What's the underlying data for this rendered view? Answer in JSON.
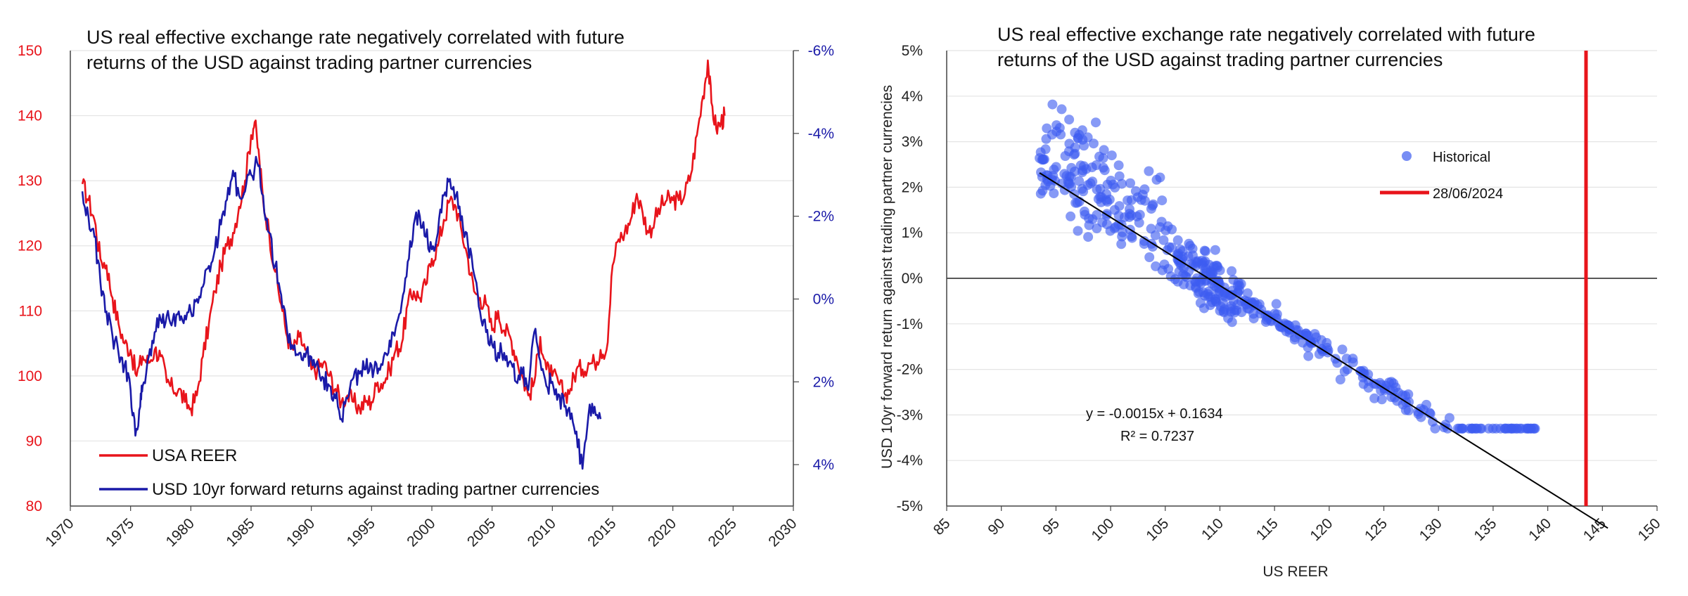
{
  "chart_data": [
    {
      "type": "line",
      "title_line1": "US real effective exchange rate negatively correlated with future",
      "title_line2": "returns of the USD against trading partner currencies",
      "xlim": [
        1970,
        2030
      ],
      "x_ticks": [
        "1970",
        "1975",
        "1980",
        "1985",
        "1990",
        "1995",
        "2000",
        "2005",
        "2010",
        "2015",
        "2020",
        "2025",
        "2030"
      ],
      "y_left_lim": [
        80,
        150
      ],
      "y_left_ticks": [
        "80",
        "90",
        "100",
        "110",
        "120",
        "130",
        "140",
        "150"
      ],
      "y_right_lim": [
        -6,
        5
      ],
      "y_right_inverted": true,
      "y_right_ticks": [
        "-6%",
        "-4%",
        "-2%",
        "0%",
        "2%",
        "4%"
      ],
      "grid": true,
      "legend_position": "bottom-left",
      "colors": {
        "reer": "#e8141b",
        "fwd": "#1a1aa8"
      },
      "series": [
        {
          "name": "USA REER",
          "axis": "left",
          "color": "#e8141b",
          "points": [
            [
              1971.0,
              129.5
            ],
            [
              1971.5,
              127
            ],
            [
              1972.0,
              124
            ],
            [
              1972.5,
              118
            ],
            [
              1973.0,
              117
            ],
            [
              1973.5,
              112
            ],
            [
              1974.0,
              108
            ],
            [
              1974.5,
              105
            ],
            [
              1975.0,
              104
            ],
            [
              1975.5,
              100
            ],
            [
              1976.0,
              103
            ],
            [
              1976.5,
              102
            ],
            [
              1977.0,
              104
            ],
            [
              1977.5,
              103
            ],
            [
              1978.0,
              99
            ],
            [
              1978.5,
              98
            ],
            [
              1979.0,
              98
            ],
            [
              1979.5,
              96
            ],
            [
              1980.0,
              95
            ],
            [
              1980.5,
              97
            ],
            [
              1981.0,
              103
            ],
            [
              1981.5,
              108
            ],
            [
              1982.0,
              113
            ],
            [
              1982.5,
              117
            ],
            [
              1983.0,
              120
            ],
            [
              1983.5,
              122
            ],
            [
              1984.0,
              126
            ],
            [
              1984.5,
              130
            ],
            [
              1985.0,
              137
            ],
            [
              1985.3,
              139
            ],
            [
              1985.7,
              133
            ],
            [
              1986.0,
              127
            ],
            [
              1986.5,
              122
            ],
            [
              1987.0,
              116
            ],
            [
              1987.5,
              111
            ],
            [
              1988.0,
              106
            ],
            [
              1988.5,
              104
            ],
            [
              1989.0,
              106
            ],
            [
              1989.5,
              104
            ],
            [
              1990.0,
              101
            ],
            [
              1990.5,
              101
            ],
            [
              1991.0,
              102
            ],
            [
              1991.5,
              100
            ],
            [
              1992.0,
              98
            ],
            [
              1992.5,
              96
            ],
            [
              1993.0,
              97
            ],
            [
              1993.5,
              96
            ],
            [
              1994.0,
              95
            ],
            [
              1994.5,
              96
            ],
            [
              1995.0,
              96
            ],
            [
              1995.5,
              99
            ],
            [
              1996.0,
              99
            ],
            [
              1996.5,
              101
            ],
            [
              1997.0,
              104
            ],
            [
              1997.5,
              105
            ],
            [
              1998.0,
              111
            ],
            [
              1998.5,
              113
            ],
            [
              1999.0,
              112
            ],
            [
              1999.5,
              114
            ],
            [
              2000.0,
              118
            ],
            [
              2000.5,
              120
            ],
            [
              2001.0,
              124
            ],
            [
              2001.5,
              127
            ],
            [
              2002.0,
              126
            ],
            [
              2002.5,
              122
            ],
            [
              2003.0,
              118
            ],
            [
              2003.5,
              113
            ],
            [
              2004.0,
              112
            ],
            [
              2004.5,
              111
            ],
            [
              2005.0,
              107
            ],
            [
              2005.5,
              110
            ],
            [
              2006.0,
              107
            ],
            [
              2006.5,
              106
            ],
            [
              2007.0,
              103
            ],
            [
              2007.5,
              100
            ],
            [
              2008.0,
              97
            ],
            [
              2008.5,
              99
            ],
            [
              2009.0,
              106
            ],
            [
              2009.5,
              101
            ],
            [
              2010.0,
              100
            ],
            [
              2010.5,
              99
            ],
            [
              2011.0,
              97
            ],
            [
              2011.5,
              98
            ],
            [
              2012.0,
              101
            ],
            [
              2012.5,
              101
            ],
            [
              2013.0,
              102
            ],
            [
              2013.5,
              102
            ],
            [
              2014.0,
              104
            ],
            [
              2014.5,
              104
            ],
            [
              2015.0,
              117
            ],
            [
              2015.5,
              121
            ],
            [
              2016.0,
              122
            ],
            [
              2016.5,
              124
            ],
            [
              2017.0,
              128
            ],
            [
              2017.5,
              125
            ],
            [
              2018.0,
              122
            ],
            [
              2018.5,
              124
            ],
            [
              2019.0,
              126
            ],
            [
              2019.5,
              127
            ],
            [
              2020.0,
              127
            ],
            [
              2020.5,
              127
            ],
            [
              2021.0,
              128
            ],
            [
              2021.5,
              131
            ],
            [
              2022.0,
              137
            ],
            [
              2022.5,
              143
            ],
            [
              2022.9,
              148.5
            ],
            [
              2023.2,
              142
            ],
            [
              2023.6,
              138
            ],
            [
              2024.0,
              139
            ],
            [
              2024.3,
              140
            ]
          ]
        },
        {
          "name": "USD 10yr forward returns against trading partner currencies",
          "axis": "right",
          "color": "#1a1aa8",
          "points": [
            [
              1971.0,
              -2.6
            ],
            [
              1971.5,
              -2.0
            ],
            [
              1972.0,
              -1.5
            ],
            [
              1972.5,
              -0.4
            ],
            [
              1973.0,
              0.3
            ],
            [
              1973.5,
              0.9
            ],
            [
              1974.0,
              1.3
            ],
            [
              1974.5,
              1.6
            ],
            [
              1975.0,
              2.2
            ],
            [
              1975.4,
              3.3
            ],
            [
              1975.8,
              2.6
            ],
            [
              1976.0,
              2.1
            ],
            [
              1976.5,
              1.4
            ],
            [
              1977.0,
              0.8
            ],
            [
              1977.5,
              0.5
            ],
            [
              1978.0,
              0.4
            ],
            [
              1978.5,
              0.5
            ],
            [
              1979.0,
              0.3
            ],
            [
              1979.5,
              0.4
            ],
            [
              1980.0,
              0.3
            ],
            [
              1980.5,
              0.0
            ],
            [
              1981.0,
              -0.3
            ],
            [
              1981.5,
              -0.8
            ],
            [
              1982.0,
              -1.2
            ],
            [
              1982.5,
              -1.8
            ],
            [
              1983.0,
              -2.4
            ],
            [
              1983.5,
              -3.1
            ],
            [
              1984.0,
              -2.5
            ],
            [
              1984.5,
              -2.6
            ],
            [
              1985.0,
              -3.0
            ],
            [
              1985.5,
              -3.3
            ],
            [
              1986.0,
              -2.5
            ],
            [
              1986.5,
              -1.6
            ],
            [
              1987.0,
              -0.8
            ],
            [
              1987.5,
              -0.1
            ],
            [
              1988.0,
              0.8
            ],
            [
              1988.5,
              1.2
            ],
            [
              1989.0,
              1.3
            ],
            [
              1989.5,
              1.4
            ],
            [
              1990.0,
              1.4
            ],
            [
              1990.5,
              1.5
            ],
            [
              1991.0,
              1.9
            ],
            [
              1991.5,
              2.1
            ],
            [
              1992.0,
              2.4
            ],
            [
              1992.5,
              2.9
            ],
            [
              1993.0,
              2.4
            ],
            [
              1993.5,
              1.9
            ],
            [
              1994.0,
              1.8
            ],
            [
              1994.5,
              1.7
            ],
            [
              1995.0,
              1.6
            ],
            [
              1995.5,
              1.8
            ],
            [
              1996.0,
              1.4
            ],
            [
              1996.5,
              1.0
            ],
            [
              1997.0,
              0.7
            ],
            [
              1997.5,
              0.1
            ],
            [
              1998.0,
              -0.9
            ],
            [
              1998.5,
              -1.8
            ],
            [
              1999.0,
              -2.0
            ],
            [
              1999.5,
              -1.5
            ],
            [
              2000.0,
              -1.2
            ],
            [
              2000.5,
              -1.6
            ],
            [
              2001.0,
              -2.5
            ],
            [
              2001.5,
              -2.9
            ],
            [
              2002.0,
              -2.5
            ],
            [
              2002.5,
              -2.0
            ],
            [
              2003.0,
              -1.3
            ],
            [
              2003.5,
              -0.6
            ],
            [
              2004.0,
              0.3
            ],
            [
              2004.5,
              0.8
            ],
            [
              2005.0,
              1.1
            ],
            [
              2005.5,
              1.3
            ],
            [
              2006.0,
              1.3
            ],
            [
              2006.5,
              1.5
            ],
            [
              2007.0,
              2.0
            ],
            [
              2007.5,
              1.8
            ],
            [
              2008.0,
              2.2
            ],
            [
              2008.5,
              0.8
            ],
            [
              2009.0,
              1.5
            ],
            [
              2009.5,
              2.1
            ],
            [
              2010.0,
              2.0
            ],
            [
              2010.5,
              2.3
            ],
            [
              2011.0,
              2.6
            ],
            [
              2011.5,
              2.9
            ],
            [
              2012.0,
              3.2
            ],
            [
              2012.5,
              4.1
            ],
            [
              2013.0,
              2.8
            ],
            [
              2013.5,
              2.6
            ],
            [
              2014.0,
              2.9
            ]
          ]
        }
      ]
    },
    {
      "type": "scatter",
      "title_line1": "US real effective exchange rate negatively correlated with future",
      "title_line2": "returns of the USD against trading partner currencies",
      "xlabel": "US REER",
      "ylabel": "USD 10yr forward return against trading partner currencies",
      "xlim": [
        85,
        150
      ],
      "ylim": [
        -5,
        5
      ],
      "x_ticks": [
        "85",
        "90",
        "95",
        "100",
        "105",
        "110",
        "115",
        "120",
        "125",
        "130",
        "135",
        "140",
        "145",
        "150"
      ],
      "y_ticks": [
        "5%",
        "4%",
        "3%",
        "2%",
        "1%",
        "0%",
        "-1%",
        "-2%",
        "-3%",
        "-4%",
        "-5%"
      ],
      "legend_position": "top-right",
      "series": [
        {
          "name": "Historical",
          "color": "#3d5cf0",
          "point_count": 480
        },
        {
          "name": "28/06/2024",
          "color": "#e8141b",
          "x": 143.5
        }
      ],
      "trendline": {
        "slope": -0.0015,
        "intercept": 0.1634,
        "x_range": [
          93.5,
          145.5
        ],
        "color": "#000000"
      },
      "equation_label": "y = -0.0015x + 0.1634",
      "r2_label": "R² = 0.7237"
    }
  ]
}
